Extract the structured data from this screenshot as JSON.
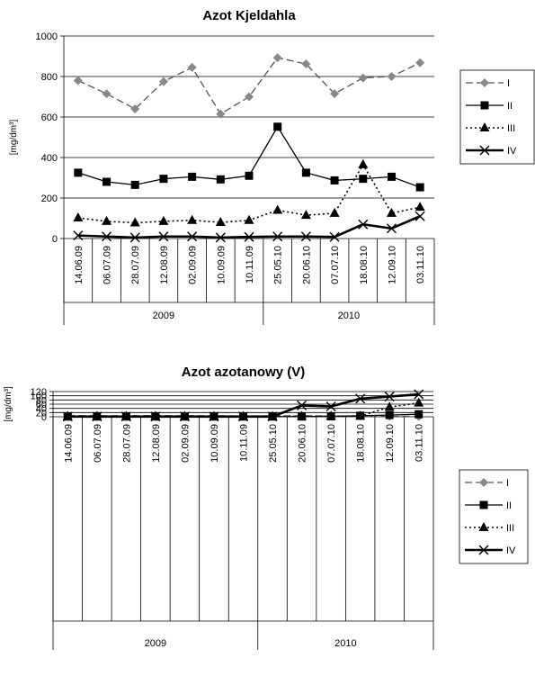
{
  "chart_data": [
    {
      "type": "line",
      "title": "Azot Kjeldahla",
      "ylabel": "[mg/dm³]",
      "ylim": [
        0,
        1000
      ],
      "yticks": [
        "0",
        "200",
        "400",
        "600",
        "800",
        "1000"
      ],
      "categories": [
        "14.06.09",
        "06.07.09",
        "28.07.09",
        "12.08.09",
        "02.09.09",
        "10.09.09",
        "10.11.09",
        "25.05.10",
        "20.06.10",
        "07.07.10",
        "18.08.10",
        "12.09.10",
        "03.11.10"
      ],
      "groups": [
        {
          "label": "2009",
          "count": 7
        },
        {
          "label": "2010",
          "count": 6
        }
      ],
      "legend_position": "right",
      "series": [
        {
          "name": "I",
          "values": [
            780,
            715,
            640,
            775,
            845,
            615,
            700,
            893,
            862,
            715,
            793,
            800,
            868
          ]
        },
        {
          "name": "II",
          "values": [
            325,
            280,
            265,
            295,
            305,
            292,
            310,
            552,
            325,
            287,
            295,
            305,
            253
          ]
        },
        {
          "name": "III",
          "values": [
            102,
            85,
            78,
            85,
            90,
            80,
            90,
            140,
            115,
            125,
            365,
            125,
            155
          ]
        },
        {
          "name": "IV",
          "values": [
            15,
            10,
            5,
            10,
            10,
            5,
            8,
            10,
            10,
            8,
            70,
            50,
            110
          ]
        }
      ]
    },
    {
      "type": "line",
      "title": "Azot azotanowy (V)",
      "ylabel": "[mg/dm³]",
      "ylim": [
        0,
        120
      ],
      "yticks": [
        "0",
        "20",
        "40",
        "60",
        "80",
        "100",
        "120"
      ],
      "categories": [
        "14.06.09",
        "06.07.09",
        "28.07.09",
        "12.08.09",
        "02.09.09",
        "10.09.09",
        "10.11.09",
        "25.05.10",
        "20.06.10",
        "07.07.10",
        "18.08.10",
        "12.09.10",
        "03.11.10"
      ],
      "groups": [
        {
          "label": "2009",
          "count": 7
        },
        {
          "label": "2010",
          "count": 6
        }
      ],
      "legend_position": "right",
      "series": [
        {
          "name": "I",
          "values": [
            6,
            5,
            5,
            6,
            5,
            5,
            4,
            4,
            5,
            4,
            3,
            2,
            1
          ]
        },
        {
          "name": "II",
          "values": [
            1,
            1,
            1,
            1,
            1,
            1,
            1,
            1,
            1,
            2,
            5,
            8,
            12
          ]
        },
        {
          "name": "III",
          "values": [
            2,
            2,
            2,
            2,
            2,
            2,
            2,
            2,
            2,
            3,
            3,
            46,
            66
          ]
        },
        {
          "name": "IV",
          "values": [
            1,
            1,
            1,
            1,
            1,
            1,
            1,
            1,
            54,
            49,
            86,
            96,
            107
          ]
        }
      ]
    }
  ]
}
